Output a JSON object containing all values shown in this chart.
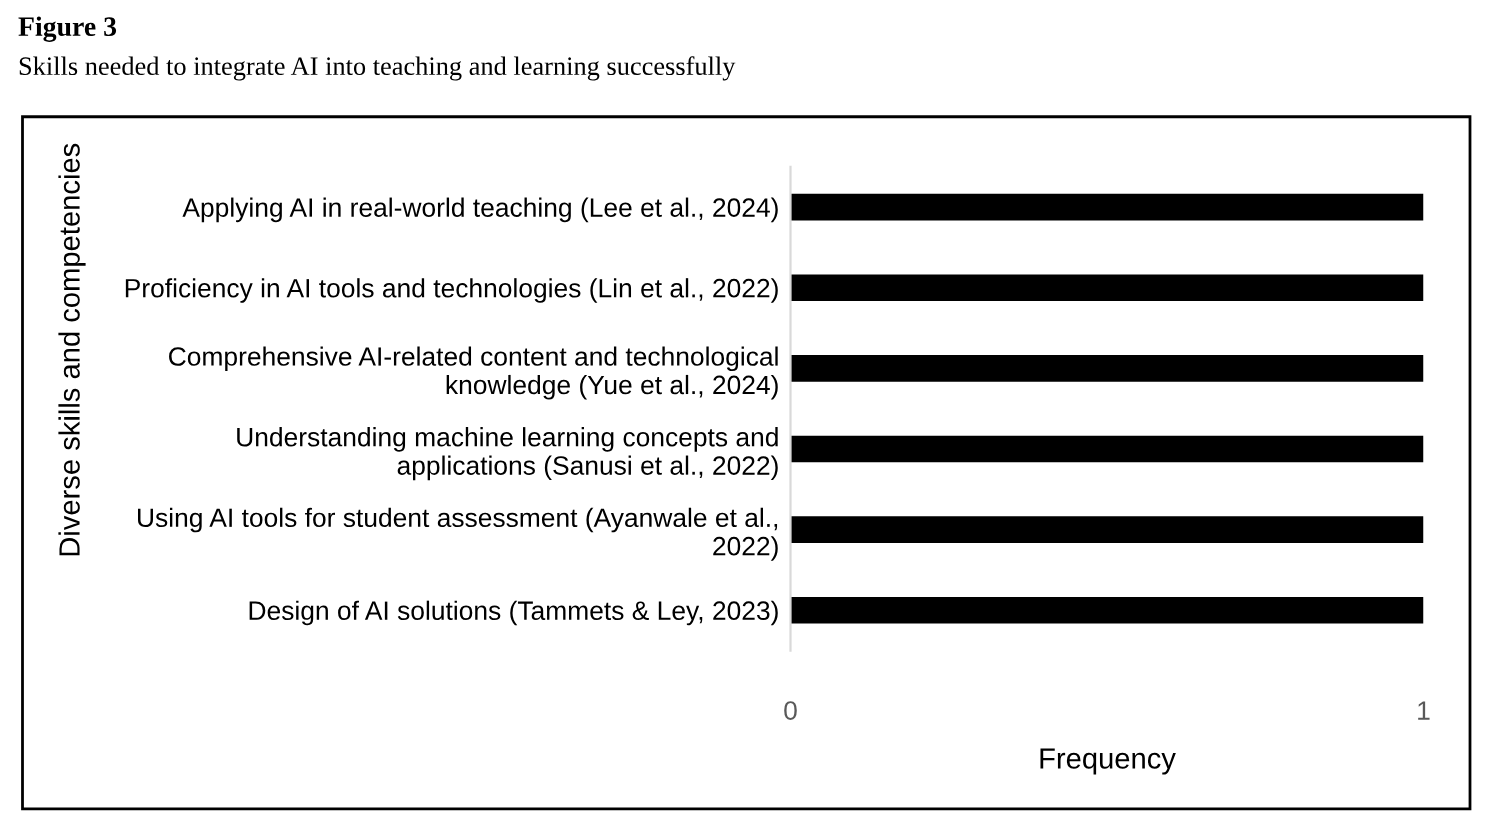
{
  "chart_data": {
    "type": "bar",
    "orientation": "horizontal",
    "title": "Figure 3",
    "subtitle": "Skills needed to integrate AI into teaching and learning successfully",
    "xlabel": "Frequency",
    "ylabel": "Diverse skills and competencies",
    "categories": [
      "Applying AI in real-world teaching (Lee et al., 2024)",
      "Proficiency in AI tools and technologies (Lin et al., 2022)",
      "Comprehensive AI-related content and technological\nknowledge (Yue et al., 2024)",
      "Understanding machine learning concepts and\napplications (Sanusi et al., 2022)",
      "Using AI tools for student assessment (Ayanwale et al.,\n2022)",
      "Design of AI solutions (Tammets & Ley, 2023)"
    ],
    "values": [
      1,
      1,
      1,
      1,
      1,
      1
    ],
    "color": "#000000",
    "xlim": [
      0,
      1
    ],
    "xticks": [
      0,
      1
    ],
    "grid": false,
    "legend": false
  }
}
